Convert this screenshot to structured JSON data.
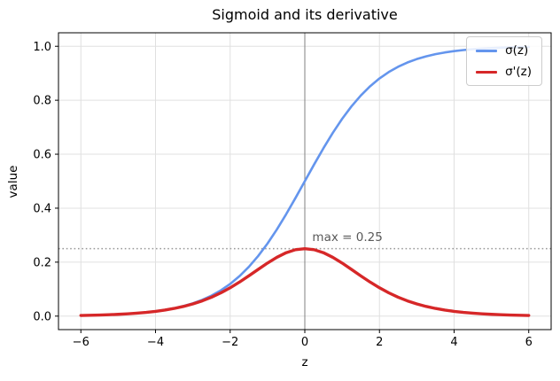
{
  "chart_data": {
    "type": "line",
    "title": "Sigmoid and its derivative",
    "xlabel": "z",
    "ylabel": "value",
    "xlim": [
      -6.6,
      6.6
    ],
    "ylim": [
      -0.05,
      1.05
    ],
    "grid": true,
    "grid_color": "#e0e0e0",
    "legend_position": "upper right",
    "xticks": {
      "values": [
        -6,
        -4,
        -2,
        0,
        2,
        4,
        6
      ],
      "labels": [
        "−6",
        "−4",
        "−2",
        "0",
        "2",
        "4",
        "6"
      ]
    },
    "yticks": {
      "values": [
        0.0,
        0.2,
        0.4,
        0.6,
        0.8,
        1.0
      ],
      "labels": [
        "0.0",
        "0.2",
        "0.4",
        "0.6",
        "0.8",
        "1.0"
      ]
    },
    "x": [
      -6,
      -5.75,
      -5.5,
      -5.25,
      -5,
      -4.75,
      -4.5,
      -4.25,
      -4,
      -3.75,
      -3.5,
      -3.25,
      -3,
      -2.75,
      -2.5,
      -2.25,
      -2,
      -1.75,
      -1.5,
      -1.25,
      -1,
      -0.75,
      -0.5,
      -0.25,
      0,
      0.25,
      0.5,
      0.75,
      1,
      1.25,
      1.5,
      1.75,
      2,
      2.25,
      2.5,
      2.75,
      3,
      3.25,
      3.5,
      3.75,
      4,
      4.25,
      4.5,
      4.75,
      5,
      5.25,
      5.5,
      5.75,
      6
    ],
    "series": [
      {
        "name": "σ(z)",
        "color": "#6495ed",
        "linewidth": 2.6,
        "values": [
          0.00247,
          0.00317,
          0.00407,
          0.00522,
          0.00669,
          0.00858,
          0.01099,
          0.01406,
          0.01799,
          0.02297,
          0.02931,
          0.03732,
          0.04743,
          0.06008,
          0.07586,
          0.09534,
          0.1192,
          0.14805,
          0.18243,
          0.2227,
          0.26894,
          0.32082,
          0.37754,
          0.43782,
          0.5,
          0.56218,
          0.62246,
          0.67918,
          0.73106,
          0.7773,
          0.81757,
          0.85195,
          0.8808,
          0.90466,
          0.92414,
          0.93992,
          0.95257,
          0.96268,
          0.97069,
          0.97703,
          0.98201,
          0.98594,
          0.98901,
          0.99142,
          0.99331,
          0.99478,
          0.99593,
          0.99683,
          0.99753
        ]
      },
      {
        "name": "σ'(z)",
        "color": "#d62728",
        "linewidth": 3.4,
        "values": [
          0.00246,
          0.00316,
          0.00405,
          0.00519,
          0.00665,
          0.00851,
          0.01087,
          0.01386,
          0.01766,
          0.02245,
          0.02845,
          0.03593,
          0.04518,
          0.05647,
          0.0701,
          0.08625,
          0.10499,
          0.12613,
          0.14915,
          0.1731,
          0.19661,
          0.21789,
          0.235,
          0.24613,
          0.25,
          0.24613,
          0.235,
          0.21789,
          0.19661,
          0.1731,
          0.14915,
          0.12613,
          0.10499,
          0.08625,
          0.0701,
          0.05647,
          0.04518,
          0.03593,
          0.02845,
          0.02245,
          0.01766,
          0.01386,
          0.01087,
          0.00851,
          0.00665,
          0.00519,
          0.00405,
          0.00316,
          0.00246
        ]
      }
    ],
    "reference_lines": [
      {
        "orientation": "vertical",
        "x": 0,
        "color": "#8c8c8c",
        "style": "solid"
      },
      {
        "orientation": "horizontal",
        "y": 0.25,
        "color": "#999999",
        "style": "dotted"
      }
    ],
    "annotation": {
      "text": "max = 0.25",
      "x": 0.2,
      "y": 0.272,
      "color": "#595959"
    }
  }
}
